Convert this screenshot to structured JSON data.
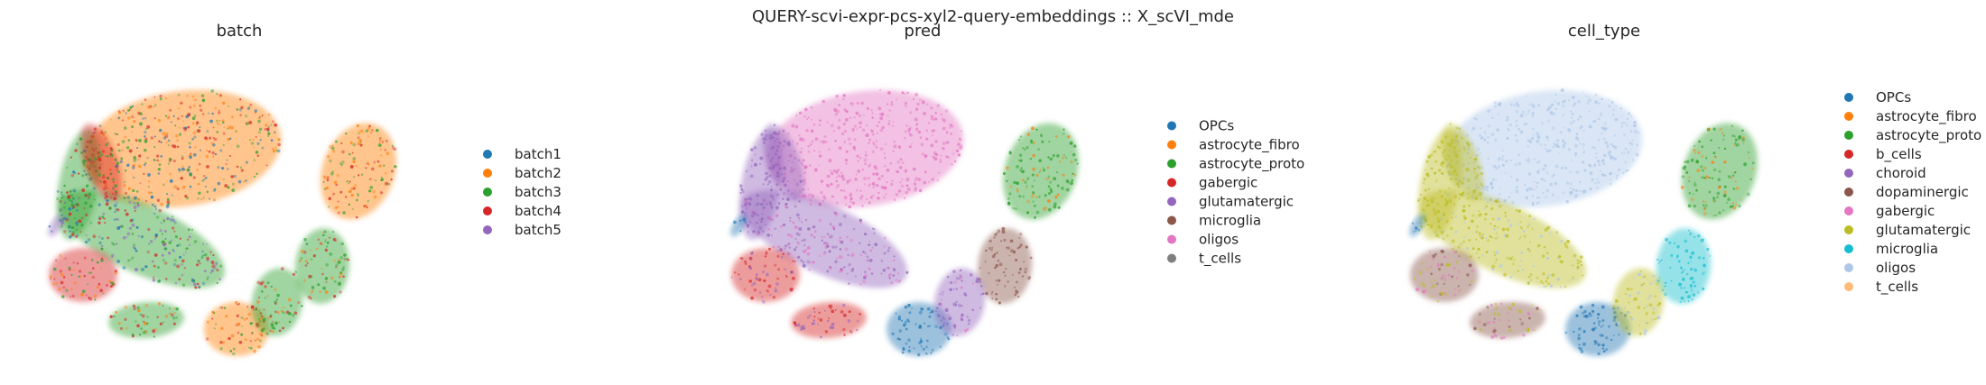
{
  "figure": {
    "suptitle": "QUERY-scvi-expr-pcs-xyl2-query-embeddings :: X_scVI_mde"
  },
  "chart_data": [
    {
      "type": "scatter",
      "title": "batch",
      "xlabel": "",
      "ylabel": "",
      "legend_position": "right",
      "grid": false,
      "series": [
        {
          "name": "batch1",
          "color": "#1f77b4"
        },
        {
          "name": "batch2",
          "color": "#ff7f0e"
        },
        {
          "name": "batch3",
          "color": "#2ca02c"
        },
        {
          "name": "batch4",
          "color": "#d62728"
        },
        {
          "name": "batch5",
          "color": "#9467bd"
        }
      ]
    },
    {
      "type": "scatter",
      "title": "pred",
      "xlabel": "",
      "ylabel": "",
      "legend_position": "right",
      "grid": false,
      "series": [
        {
          "name": "OPCs",
          "color": "#1f77b4"
        },
        {
          "name": "astrocyte_fibro",
          "color": "#ff7f0e"
        },
        {
          "name": "astrocyte_proto",
          "color": "#2ca02c"
        },
        {
          "name": "gabergic",
          "color": "#d62728"
        },
        {
          "name": "glutamatergic",
          "color": "#9467bd"
        },
        {
          "name": "microglia",
          "color": "#8c564b"
        },
        {
          "name": "oligos",
          "color": "#e377c2"
        },
        {
          "name": "t_cells",
          "color": "#7f7f7f"
        }
      ]
    },
    {
      "type": "scatter",
      "title": "cell_type",
      "xlabel": "",
      "ylabel": "",
      "legend_position": "right",
      "grid": false,
      "series": [
        {
          "name": "OPCs",
          "color": "#1f77b4"
        },
        {
          "name": "astrocyte_fibro",
          "color": "#ff7f0e"
        },
        {
          "name": "astrocyte_proto",
          "color": "#2ca02c"
        },
        {
          "name": "b_cells",
          "color": "#d62728"
        },
        {
          "name": "choroid",
          "color": "#9467bd"
        },
        {
          "name": "dopaminergic",
          "color": "#8c564b"
        },
        {
          "name": "gabergic",
          "color": "#e377c2"
        },
        {
          "name": "glutamatergic",
          "color": "#bcbd22"
        },
        {
          "name": "microglia",
          "color": "#17becf"
        },
        {
          "name": "oligos",
          "color": "#aec7e8"
        },
        {
          "name": "t_cells",
          "color": "#ffbb78"
        }
      ]
    }
  ]
}
